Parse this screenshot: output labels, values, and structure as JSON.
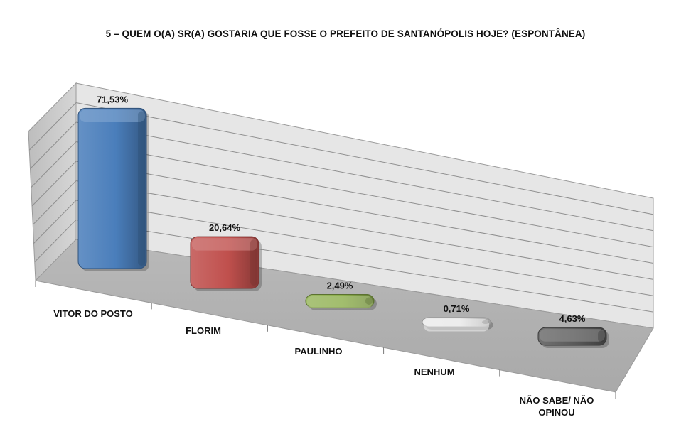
{
  "chart_data": {
    "type": "bar",
    "title": "5 – QUEM O(A) SR(A) GOSTARIA QUE FOSSE O PREFEITO DE SANTANÓPOLIS HOJE? (ESPONTÂNEA)",
    "categories": [
      "VITOR DO POSTO",
      "FLORIM",
      "PAULINHO",
      "NENHUM",
      "NÃO SABE/ NÃO OPINOU"
    ],
    "values": [
      71.53,
      20.64,
      2.49,
      0.71,
      4.63
    ],
    "data_labels": [
      "71,53%",
      "20,64%",
      "2,49%",
      "0,71%",
      "4,63%"
    ],
    "colors": [
      "#4a7ebb",
      "#c0504d",
      "#8cae4b",
      "#e8e8e8",
      "#595959"
    ],
    "xlabel": "",
    "ylabel": "",
    "ylim": [
      0,
      80
    ],
    "grid": true,
    "legend": "none",
    "style": "3d-perspective"
  }
}
